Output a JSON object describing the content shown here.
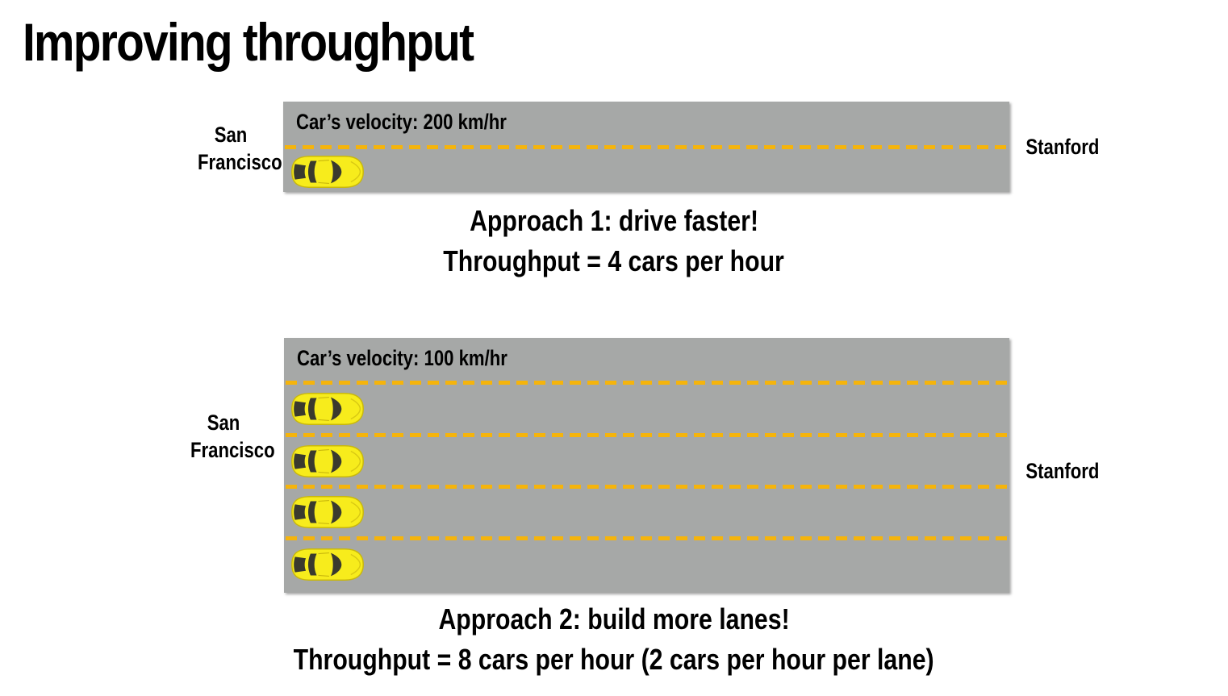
{
  "title": "Improving throughput",
  "colors": {
    "road": "#a6a8a7",
    "lane_marking": "#f5b40c",
    "car_body": "#f7ec1c",
    "car_glass": "#3a3a2e"
  },
  "approach1": {
    "origin": [
      "San",
      "Francisco"
    ],
    "destination": "Stanford",
    "velocity": "Car’s velocity: 200 km/hr",
    "lanes": 1,
    "caption_line1": "Approach 1: drive faster!",
    "caption_line2": "Throughput = 4 cars per hour"
  },
  "approach2": {
    "origin": [
      "San",
      "Francisco"
    ],
    "destination": "Stanford",
    "velocity": "Car’s velocity: 100 km/hr",
    "lanes": 4,
    "caption_line1": "Approach 2: build more lanes!",
    "caption_line2": "Throughput = 8 cars per hour (2 cars per hour per lane)"
  }
}
